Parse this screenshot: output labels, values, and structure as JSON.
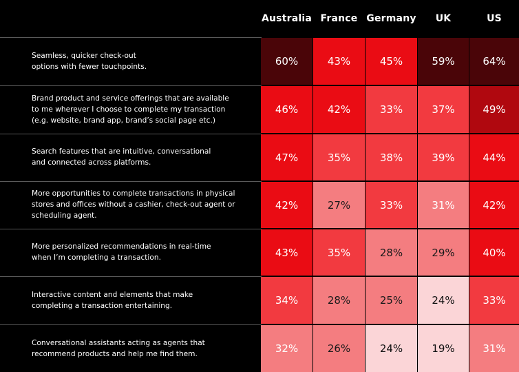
{
  "chart_data": {
    "type": "heatmap",
    "columns": [
      "Australia",
      "France",
      "Germany",
      "UK",
      "US"
    ],
    "rows": [
      {
        "label": "Seamless, quicker check-out\noptions with fewer touchpoints.",
        "values": [
          "60%",
          "43%",
          "45%",
          "59%",
          "64%"
        ]
      },
      {
        "label": "Brand product and service offerings that are available\nto me wherever I choose to complete my transaction\n(e.g. website, brand  app, brand’s social page etc.)",
        "values": [
          "46%",
          "42%",
          "33%",
          "37%",
          "49%"
        ]
      },
      {
        "label": "Search features that are intuitive, conversational\nand connected across platforms.",
        "values": [
          "47%",
          "35%",
          "38%",
          "39%",
          "44%"
        ]
      },
      {
        "label": "More opportunities to complete transactions in physical\nstores and offices without a cashier, check-out agent or\nscheduling agent.",
        "values": [
          "42%",
          "27%",
          "33%",
          "31%",
          "42%"
        ]
      },
      {
        "label": "More personalized recommendations in real-time\nwhen I’m completing a transaction.",
        "values": [
          "43%",
          "35%",
          "28%",
          "29%",
          "40%"
        ]
      },
      {
        "label": "Interactive content and elements that make\ncompleting a transaction entertaining.",
        "values": [
          "34%",
          "28%",
          "25%",
          "24%",
          "33%"
        ]
      },
      {
        "label": "Conversational assistants acting as agents that\nrecommend products and help me find them.",
        "values": [
          "32%",
          "26%",
          "24%",
          "19%",
          "31%"
        ]
      }
    ],
    "colors": {
      "background": "#000000",
      "darkest": "#4a0508",
      "dark": "#b0080f",
      "strong": "#ea0c14",
      "medium": "#f23a40",
      "light": "#f47d80",
      "lightest": "#fbd5d7"
    }
  }
}
